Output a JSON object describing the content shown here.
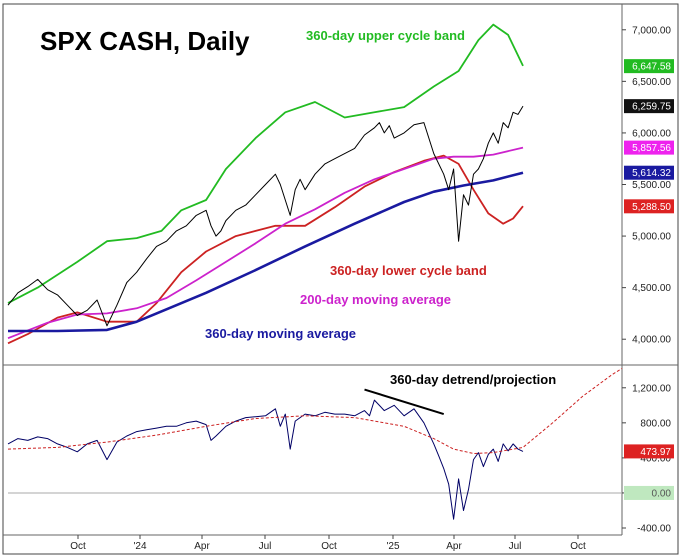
{
  "chart_data": {
    "type": "line",
    "title": "SPX CASH, Daily",
    "x_ticks": [
      "Oct",
      "'24",
      "Apr",
      "Jul",
      "Oct",
      "'25",
      "Apr",
      "Jul",
      "Oct"
    ],
    "upper_panel": {
      "ylim": [
        3750,
        7250
      ],
      "y_ticks": [
        "4,000.00",
        "4,500.00",
        "5,000.00",
        "5,500.00",
        "6,000.00",
        "6,500.00",
        "7,000.00"
      ],
      "annotations": [
        {
          "text": "360-day upper cycle band",
          "color": "#22bb22"
        },
        {
          "text": "360-day lower cycle band",
          "color": "#cc2222"
        },
        {
          "text": "200-day moving average",
          "color": "#cc22cc"
        },
        {
          "text": "360-day moving average",
          "color": "#1a1aa0"
        }
      ],
      "last_values": [
        {
          "label": "6,647.58",
          "value": 6647.58,
          "bg": "#22bb22",
          "fg": "#ffffff"
        },
        {
          "label": "6,259.75",
          "value": 6259.75,
          "bg": "#111111",
          "fg": "#ffffff"
        },
        {
          "label": "5,857.56",
          "value": 5857.56,
          "bg": "#ee22ee",
          "fg": "#ffffff"
        },
        {
          "label": "5,614.32",
          "value": 5614.32,
          "bg": "#1a1aa0",
          "fg": "#ffffff"
        },
        {
          "label": "5,288.50",
          "value": 5288.5,
          "bg": "#dd2222",
          "fg": "#ffffff"
        }
      ],
      "series": [
        {
          "name": "360-day upper cycle band",
          "color": "#22bb22",
          "width": 1.8,
          "x": [
            0,
            30,
            70,
            100,
            130,
            155,
            175,
            200,
            220,
            250,
            280,
            310,
            340,
            370,
            400,
            430,
            455,
            475,
            490,
            505,
            520
          ],
          "y": [
            4350,
            4500,
            4750,
            4950,
            4980,
            5050,
            5250,
            5350,
            5650,
            5950,
            6200,
            6300,
            6150,
            6200,
            6250,
            6450,
            6600,
            6900,
            7050,
            6950,
            6650
          ]
        },
        {
          "name": "360-day lower cycle band",
          "color": "#cc2222",
          "width": 1.8,
          "x": [
            0,
            20,
            50,
            70,
            100,
            130,
            150,
            175,
            200,
            230,
            270,
            300,
            330,
            360,
            390,
            420,
            440,
            455,
            470,
            485,
            500,
            510,
            520
          ],
          "y": [
            3960,
            4050,
            4210,
            4260,
            4170,
            4170,
            4350,
            4650,
            4850,
            5000,
            5100,
            5100,
            5280,
            5480,
            5620,
            5730,
            5780,
            5700,
            5450,
            5220,
            5120,
            5170,
            5290
          ]
        },
        {
          "name": "200-day moving average",
          "color": "#cc22cc",
          "width": 1.8,
          "x": [
            0,
            40,
            70,
            100,
            130,
            160,
            190,
            220,
            250,
            280,
            310,
            340,
            370,
            400,
            430,
            450,
            470,
            490,
            520
          ],
          "y": [
            4010,
            4160,
            4240,
            4250,
            4300,
            4400,
            4570,
            4750,
            4930,
            5120,
            5260,
            5420,
            5550,
            5650,
            5750,
            5770,
            5770,
            5790,
            5858
          ]
        },
        {
          "name": "360-day moving average",
          "color": "#1a1aa0",
          "width": 2.6,
          "x": [
            0,
            50,
            100,
            130,
            160,
            200,
            250,
            300,
            350,
            400,
            430,
            460,
            490,
            520
          ],
          "y": [
            4080,
            4080,
            4090,
            4170,
            4290,
            4450,
            4670,
            4900,
            5120,
            5330,
            5430,
            5490,
            5540,
            5614
          ]
        },
        {
          "name": "SPX",
          "color": "#000000",
          "width": 1.0,
          "x": [
            0,
            10,
            20,
            30,
            40,
            50,
            60,
            70,
            80,
            90,
            100,
            110,
            120,
            130,
            140,
            150,
            160,
            170,
            180,
            190,
            200,
            205,
            210,
            215,
            220,
            230,
            240,
            250,
            260,
            270,
            275,
            285,
            290,
            295,
            300,
            310,
            320,
            330,
            340,
            350,
            360,
            370,
            375,
            380,
            385,
            390,
            400,
            410,
            420,
            430,
            440,
            445,
            450,
            455,
            460,
            465,
            470,
            475,
            480,
            485,
            490,
            495,
            500,
            505,
            510,
            515,
            520
          ],
          "y": [
            4330,
            4450,
            4510,
            4580,
            4480,
            4430,
            4330,
            4230,
            4280,
            4380,
            4130,
            4330,
            4550,
            4650,
            4780,
            4900,
            4950,
            5050,
            5100,
            5200,
            5250,
            5100,
            5000,
            5050,
            5150,
            5250,
            5300,
            5400,
            5500,
            5600,
            5500,
            5200,
            5450,
            5550,
            5450,
            5600,
            5700,
            5750,
            5800,
            5850,
            5980,
            6050,
            6100,
            6000,
            6070,
            5950,
            6000,
            6080,
            6100,
            5800,
            5600,
            5450,
            5650,
            4950,
            5400,
            5300,
            5600,
            5650,
            5750,
            5900,
            6000,
            5900,
            6100,
            6050,
            6200,
            6180,
            6260
          ]
        }
      ]
    },
    "lower_panel": {
      "title": "360-day detrend/projection",
      "ylim": [
        -480,
        1460
      ],
      "y_ticks": [
        "-400.00",
        "0.00",
        "400.00",
        "800.00",
        "1,200.00"
      ],
      "last_values": [
        {
          "label": "473.97",
          "value": 473.97,
          "bg": "#dd2222",
          "fg": "#ffffff"
        },
        {
          "label": "0.00",
          "value": 0,
          "bg": "#bfe8bf",
          "fg": "#555555"
        }
      ],
      "series": [
        {
          "name": "detrend",
          "color": "#000066",
          "width": 1.0,
          "x": [
            0,
            10,
            20,
            30,
            40,
            50,
            60,
            70,
            80,
            90,
            100,
            110,
            120,
            130,
            140,
            150,
            160,
            170,
            180,
            190,
            200,
            205,
            210,
            220,
            230,
            240,
            250,
            260,
            270,
            275,
            280,
            285,
            290,
            295,
            300,
            310,
            320,
            330,
            340,
            350,
            360,
            365,
            370,
            380,
            390,
            400,
            410,
            420,
            430,
            435,
            440,
            445,
            450,
            455,
            460,
            465,
            470,
            475,
            480,
            485,
            490,
            495,
            500,
            505,
            510,
            515,
            520
          ],
          "y": [
            560,
            620,
            600,
            640,
            620,
            560,
            520,
            470,
            560,
            600,
            380,
            580,
            650,
            700,
            720,
            740,
            760,
            760,
            800,
            820,
            780,
            600,
            650,
            760,
            820,
            860,
            870,
            880,
            960,
            760,
            900,
            500,
            820,
            860,
            900,
            880,
            920,
            900,
            900,
            880,
            940,
            880,
            1060,
            940,
            1000,
            880,
            960,
            800,
            560,
            420,
            280,
            100,
            -300,
            160,
            -200,
            40,
            380,
            460,
            300,
            440,
            500,
            360,
            560,
            480,
            560,
            500,
            474
          ]
        },
        {
          "name": "projection",
          "color": "#cc2222",
          "width": 1.0,
          "dash": "3,2",
          "x": [
            0,
            50,
            100,
            150,
            200,
            250,
            300,
            350,
            400,
            430,
            450,
            470,
            490,
            520,
            550,
            580,
            610,
            620
          ],
          "y": [
            500,
            520,
            580,
            660,
            760,
            850,
            880,
            860,
            760,
            620,
            500,
            450,
            460,
            520,
            800,
            1100,
            1350,
            1420
          ]
        }
      ],
      "trendline": {
        "color": "#000000",
        "x": [
          360,
          440
        ],
        "y": [
          1180,
          900
        ]
      }
    }
  }
}
